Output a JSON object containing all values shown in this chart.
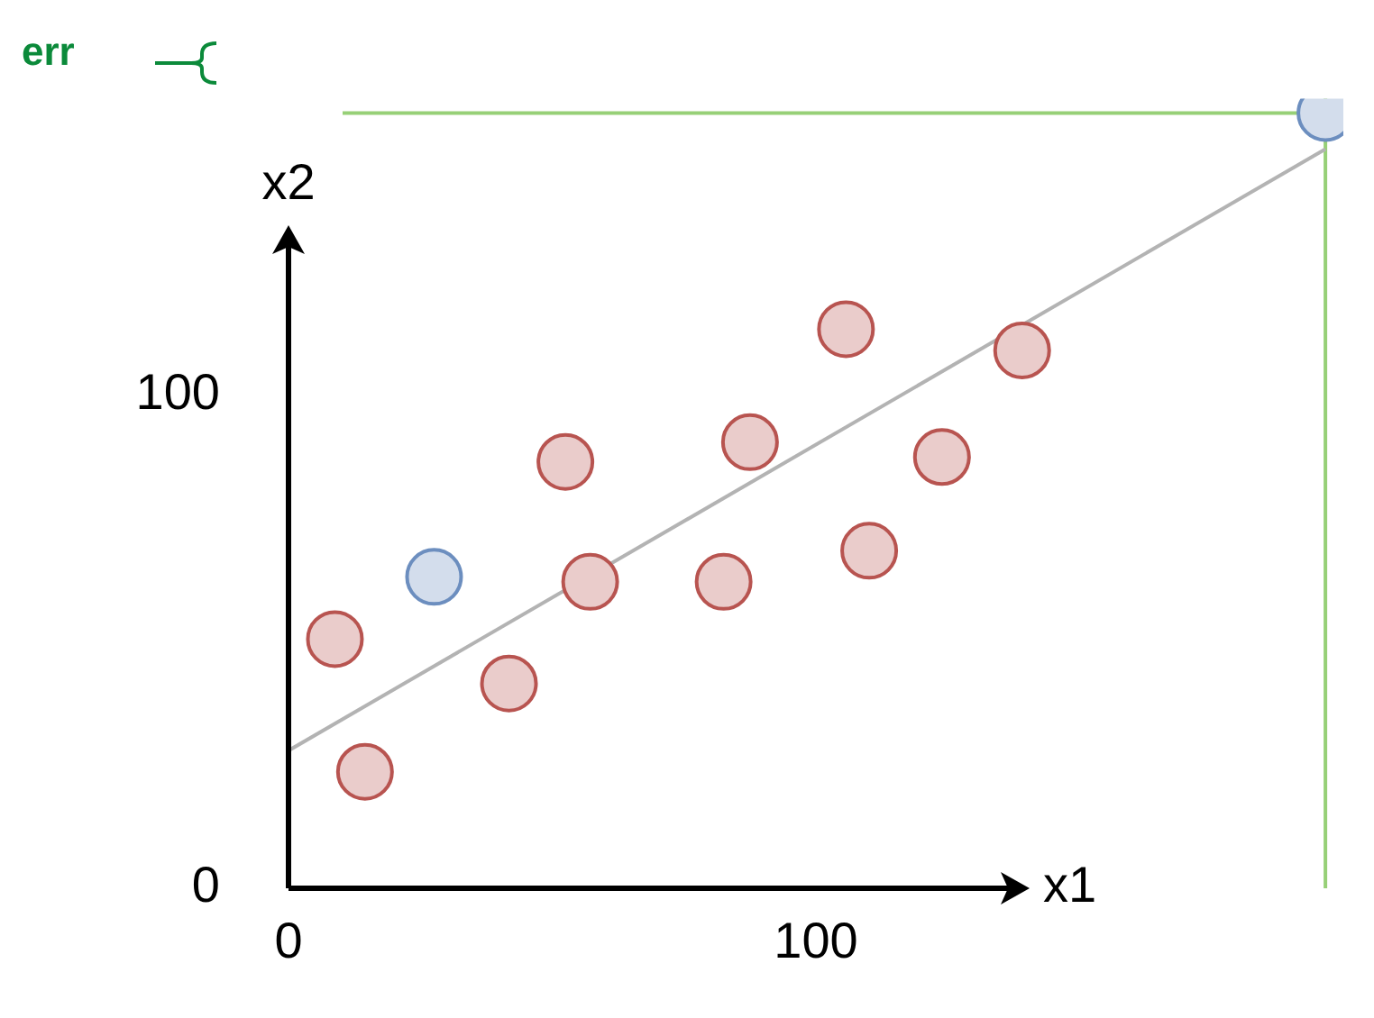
{
  "chart_data": {
    "type": "scatter",
    "xlabel": "x1",
    "ylabel": "x2",
    "annotations": [
      "err"
    ],
    "xlim": [
      0,
      200
    ],
    "ylim": [
      0,
      160
    ],
    "xticks": [
      0,
      100
    ],
    "yticks": [
      0,
      100
    ],
    "grid": false,
    "legend": false,
    "marker": "circle",
    "series": [
      {
        "color": "#b85450",
        "x": [
          8.8,
          14.5,
          41.8,
          52.5,
          57.2,
          82.5,
          87.5,
          105.7,
          110.1,
          123.9,
          139.1
        ],
        "values": [
          50.5,
          23.6,
          41.5,
          86.4,
          62.1,
          62.1,
          90.4,
          113.3,
          68.4,
          87.4,
          109
        ]
      },
      {
        "color": "#6c8ebf",
        "x": [
          27.6,
          196.6
        ],
        "values": [
          63.1,
          157.1
        ]
      },
      {
        "type": "line",
        "marker": "none",
        "color": "#b3b3b3",
        "x": [
          0,
          196.6
        ],
        "values": [
          27.9,
          149.8
        ]
      }
    ],
    "ref_lines": [
      {
        "axis": "y",
        "value": 157.1,
        "color": "#97d077"
      },
      {
        "axis": "x",
        "value": 196.6,
        "color": "#97d077"
      }
    ]
  }
}
